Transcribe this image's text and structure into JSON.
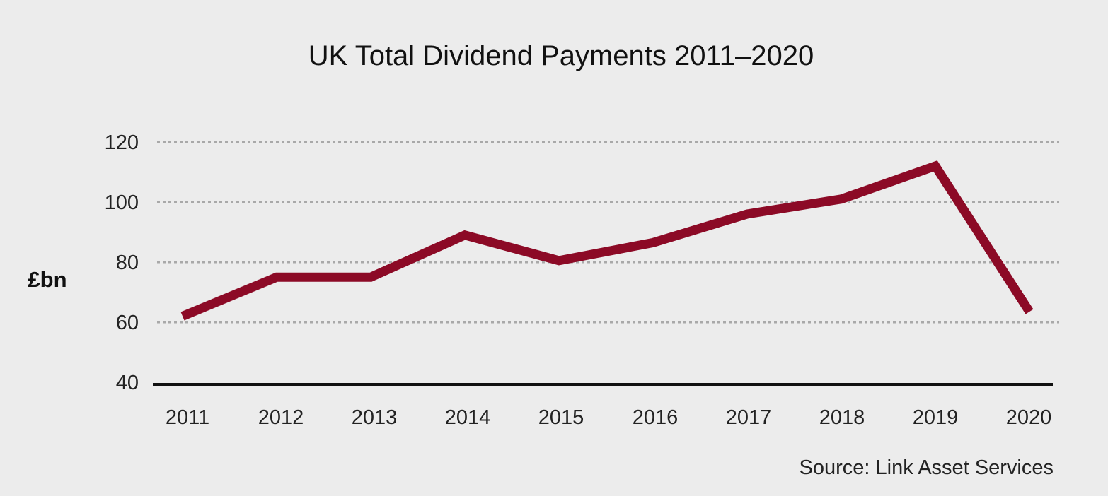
{
  "chart_data": {
    "type": "line",
    "title": "UK Total Dividend Payments  2011–2020",
    "xlabel": "",
    "ylabel": "£bn",
    "ylim": [
      40,
      120
    ],
    "yticks": [
      "40",
      "60",
      "80",
      "100",
      "120"
    ],
    "grid": true,
    "categories": [
      "2011",
      "2012",
      "2013",
      "2014",
      "2015",
      "2016",
      "2017",
      "2018",
      "2019",
      "2020"
    ],
    "series": [
      {
        "values": [
          62,
          75,
          75,
          89,
          80.5,
          86.5,
          96,
          101,
          112,
          63.5
        ],
        "color": "#8c0a26"
      }
    ],
    "source": "Source: Link Asset Services"
  },
  "colors": {
    "background": "#ececec",
    "line": "#8c0a26",
    "grid": "#a9a9a9",
    "axis": "#111111"
  }
}
